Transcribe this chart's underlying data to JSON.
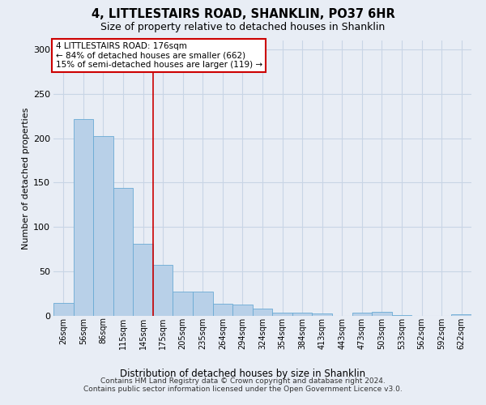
{
  "title": "4, LITTLESTAIRS ROAD, SHANKLIN, PO37 6HR",
  "subtitle": "Size of property relative to detached houses in Shanklin",
  "xlabel": "Distribution of detached houses by size in Shanklin",
  "ylabel": "Number of detached properties",
  "categories": [
    "26sqm",
    "56sqm",
    "86sqm",
    "115sqm",
    "145sqm",
    "175sqm",
    "205sqm",
    "235sqm",
    "264sqm",
    "294sqm",
    "324sqm",
    "354sqm",
    "384sqm",
    "413sqm",
    "443sqm",
    "473sqm",
    "503sqm",
    "533sqm",
    "562sqm",
    "592sqm",
    "622sqm"
  ],
  "values": [
    15,
    222,
    202,
    144,
    81,
    57,
    27,
    27,
    14,
    13,
    8,
    4,
    4,
    3,
    0,
    4,
    5,
    1,
    0,
    0,
    2
  ],
  "bar_color": "#b8d0e8",
  "bar_edge_color": "#6aaad4",
  "grid_color": "#c8d5e5",
  "background_color": "#e8edf5",
  "vline_color": "#cc0000",
  "vline_x_index": 5,
  "annotation_line1": "4 LITTLESTAIRS ROAD: 176sqm",
  "annotation_line2": "← 84% of detached houses are smaller (662)",
  "annotation_line3": "15% of semi-detached houses are larger (119) →",
  "annotation_box_facecolor": "#ffffff",
  "annotation_box_edgecolor": "#cc0000",
  "ylim": [
    0,
    310
  ],
  "yticks": [
    0,
    50,
    100,
    150,
    200,
    250,
    300
  ],
  "footnote_line1": "Contains HM Land Registry data © Crown copyright and database right 2024.",
  "footnote_line2": "Contains public sector information licensed under the Open Government Licence v3.0."
}
